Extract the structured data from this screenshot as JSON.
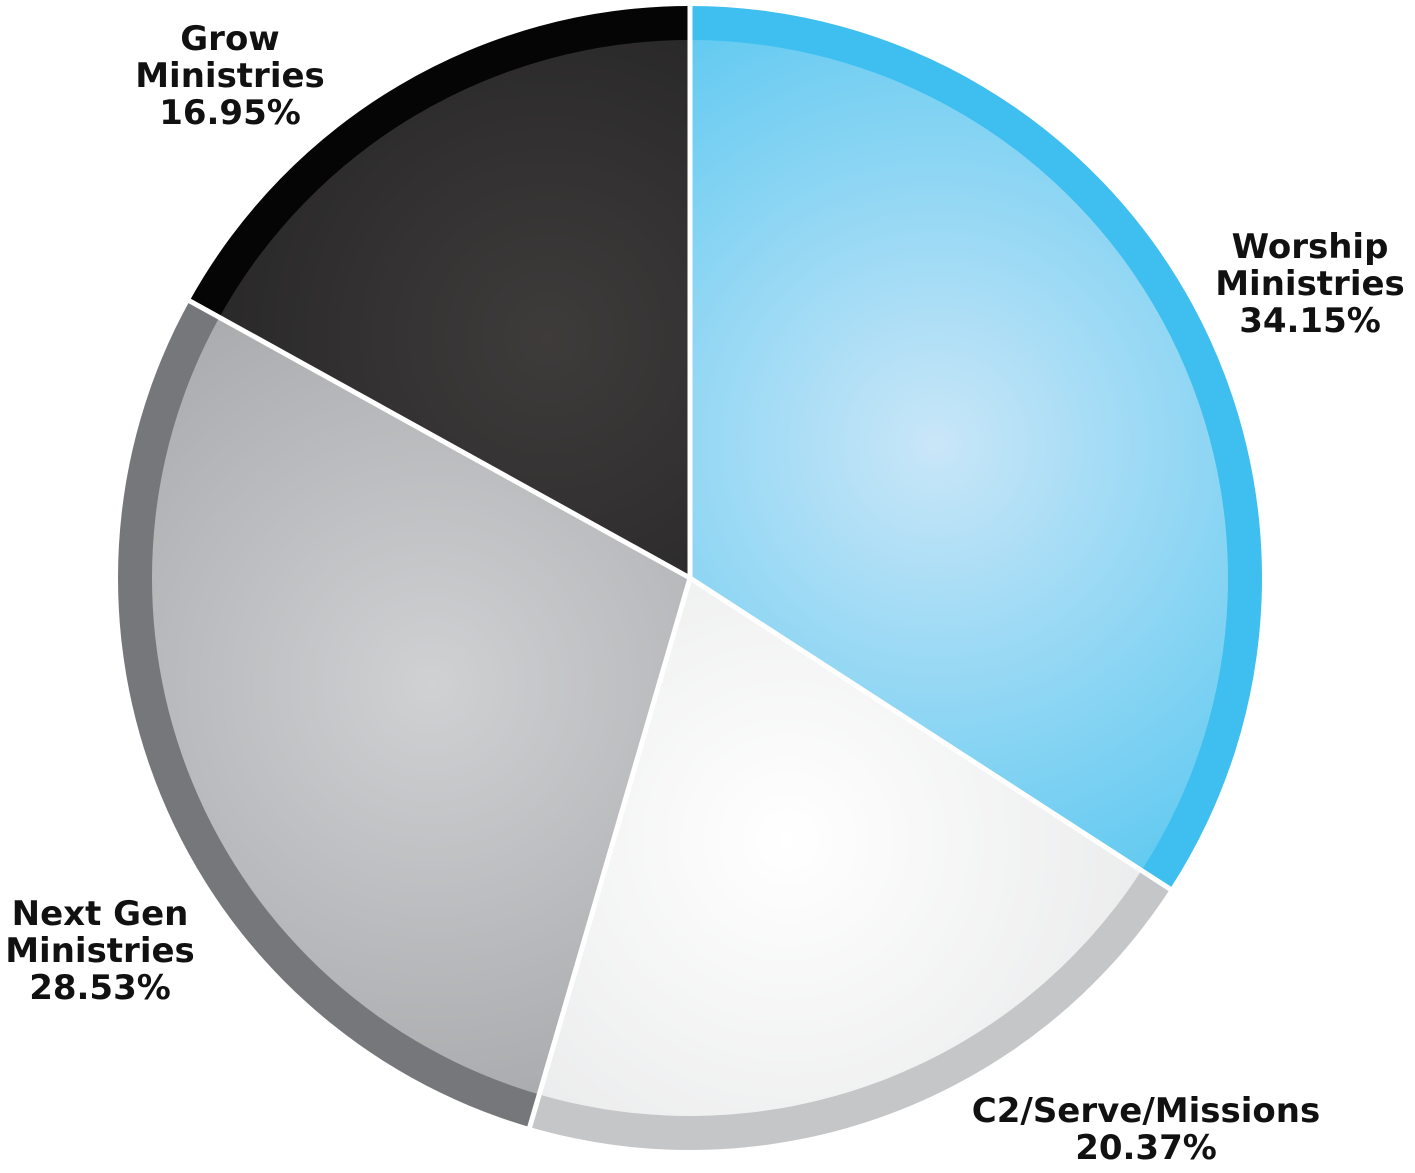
{
  "chart_data": {
    "type": "pie",
    "title": "",
    "start_angle_deg": 0,
    "direction": "clockwise",
    "slices": [
      {
        "name": "Worship Ministries",
        "label_lines": [
          "Worship",
          "Ministries"
        ],
        "value": 34.15,
        "value_label": "34.15%",
        "color": "#5BC8F0",
        "edge_color": "#3FBFEF",
        "highlight_color": "#C9E6F8"
      },
      {
        "name": "C2/Serve/Missions",
        "label_lines": [
          "C2/Serve/Missions"
        ],
        "value": 20.37,
        "value_label": "20.37%",
        "color": "#E3E4E5",
        "edge_color": "#C5C6C8",
        "highlight_color": "#FFFFFF"
      },
      {
        "name": "Next Gen Ministries",
        "label_lines": [
          "Next Gen",
          "Ministries"
        ],
        "value": 28.53,
        "value_label": "28.53%",
        "color": "#A3A4A7",
        "edge_color": "#76777A",
        "highlight_color": "#D0D1D3"
      },
      {
        "name": "Grow Ministries",
        "label_lines": [
          "Grow",
          "Ministries"
        ],
        "value": 16.95,
        "value_label": "16.95%",
        "color": "#1F1F1F",
        "edge_color": "#050505",
        "highlight_color": "#3E3B3B"
      }
    ],
    "legend": "none"
  }
}
